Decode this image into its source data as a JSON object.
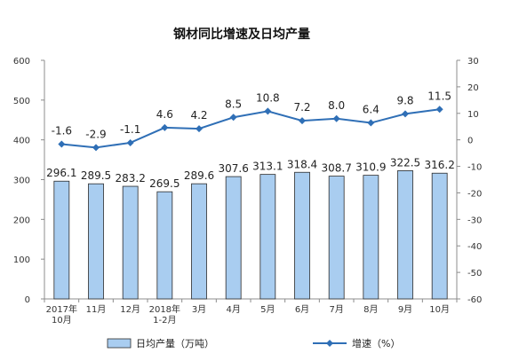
{
  "chart_data": {
    "type": "bar",
    "title": "钢材同比增速及日均产量",
    "categories": [
      "2017年\n10月",
      "11月",
      "12月",
      "2018年\n1-2月",
      "3月",
      "4月",
      "5月",
      "6月",
      "7月",
      "8月",
      "9月",
      "10月"
    ],
    "series": [
      {
        "name": "日均产量（万吨）",
        "type": "bar",
        "axis": "left",
        "values": [
          296.1,
          289.5,
          283.2,
          269.5,
          289.6,
          307.6,
          313.1,
          318.4,
          308.7,
          310.9,
          322.5,
          316.2
        ],
        "labels": [
          "296.1",
          "289.5",
          "283.2",
          "269.5",
          "289.6",
          "307.6",
          "313.1",
          "318.4",
          "308.7",
          "310.9",
          "322.5",
          "316.2"
        ]
      },
      {
        "name": "增速（%）",
        "type": "line",
        "axis": "right",
        "values": [
          -1.6,
          -2.9,
          -1.1,
          4.6,
          4.2,
          8.5,
          10.8,
          7.2,
          8.0,
          6.4,
          9.8,
          11.5
        ],
        "labels": [
          "-1.6",
          "-2.9",
          "-1.1",
          "4.6",
          "4.2",
          "8.5",
          "10.8",
          "7.2",
          "8.0",
          "6.4",
          "9.8",
          "11.5"
        ]
      }
    ],
    "y_left": {
      "range": [
        0,
        600
      ],
      "ticks": [
        0,
        100,
        200,
        300,
        400,
        500,
        600
      ],
      "tick_labels": [
        "0",
        "100",
        "200",
        "300",
        "400",
        "500",
        "600"
      ]
    },
    "y_right": {
      "range": [
        -60,
        30
      ],
      "ticks": [
        -60,
        -50,
        -40,
        -30,
        -20,
        -10,
        0,
        10,
        20,
        30
      ],
      "tick_labels": [
        "-60",
        "-50",
        "-40",
        "-30",
        "-20",
        "-10",
        "0",
        "10",
        "20",
        "30"
      ]
    },
    "grid": false,
    "legend_position": "bottom",
    "colors": {
      "bar_fill": "#a9cdf0",
      "bar_stroke": "#2b2b2b",
      "line": "#2f6fb6",
      "axis": "#8c8c8c"
    }
  }
}
